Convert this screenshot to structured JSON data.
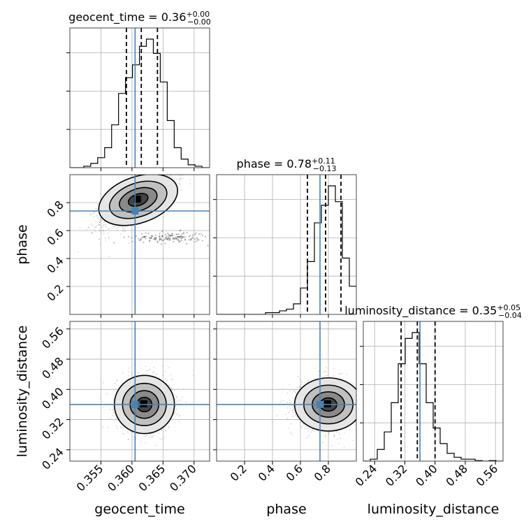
{
  "chart_data": {
    "type": "corner",
    "parameters": [
      {
        "name": "geocent_time",
        "axis_label": "geocent_time",
        "title_value": "0.36",
        "title_plus": "+0.00",
        "title_minus": "−0.00",
        "range": [
          0.35,
          0.3725
        ],
        "ticks": [
          0.355,
          0.36,
          0.365,
          0.37
        ],
        "tick_labels": [
          "0.355",
          "0.360",
          "0.365",
          "0.370"
        ],
        "truth": 0.3605,
        "quantiles": [
          0.3591,
          0.3615,
          0.3641
        ],
        "hist": {
          "edges_start": 0.35,
          "bin_width": 0.00112,
          "counts": [
            0,
            0,
            1,
            3,
            7,
            14,
            30,
            52,
            63,
            72,
            85,
            90,
            80,
            60,
            33,
            14,
            6,
            2,
            1,
            0
          ]
        }
      },
      {
        "name": "phase",
        "axis_label": "phase",
        "title_value": "0.78",
        "title_plus": "+0.11",
        "title_minus": "−0.13",
        "range": [
          0.0,
          1.0
        ],
        "ticks": [
          0.2,
          0.4,
          0.6,
          0.8
        ],
        "tick_labels": [
          "0.2",
          "0.4",
          "0.6",
          "0.8"
        ],
        "truth": 0.74,
        "quantiles": [
          0.65,
          0.78,
          0.89
        ],
        "hist": {
          "edges_start": 0.0,
          "bin_width": 0.05,
          "counts": [
            0,
            0,
            0,
            0,
            0,
            0,
            0,
            1,
            1,
            2,
            3,
            6,
            15,
            30,
            52,
            62,
            73,
            64,
            32,
            16
          ]
        }
      },
      {
        "name": "luminosity_distance",
        "axis_label": "luminosity_distance",
        "title_value": "0.35",
        "title_plus": "+0.05",
        "title_minus": "−0.04",
        "range": [
          0.21,
          0.58
        ],
        "ticks": [
          0.24,
          0.32,
          0.4,
          0.48,
          0.56
        ],
        "tick_labels": [
          "0.24",
          "0.32",
          "0.40",
          "0.48",
          "0.56"
        ],
        "truth": 0.36,
        "quantiles": [
          0.31,
          0.353,
          0.4
        ],
        "hist": {
          "edges_start": 0.21,
          "bin_width": 0.0185,
          "counts": [
            0,
            1,
            6,
            15,
            30,
            50,
            63,
            66,
            50,
            30,
            17,
            9,
            4,
            2,
            1,
            1,
            0.3,
            0,
            0.3,
            0
          ]
        }
      }
    ],
    "pairs": [
      {
        "row": 1,
        "col": 0,
        "center": [
          0.361,
          0.82
        ],
        "spread": [
          0.003,
          0.1
        ],
        "corr": 0.7,
        "extra_blob": {
          "center": [
            0.366,
            0.55
          ],
          "spread": [
            0.003,
            0.02
          ]
        }
      },
      {
        "row": 2,
        "col": 0,
        "center": [
          0.362,
          0.36
        ],
        "spread": [
          0.0022,
          0.035
        ],
        "corr": 0.0
      },
      {
        "row": 2,
        "col": 1,
        "center": [
          0.8,
          0.36
        ],
        "spread": [
          0.11,
          0.032
        ],
        "corr": 0.0
      }
    ],
    "colors": {
      "truth": "#4682b4",
      "hist": "#000000",
      "points": "#888888"
    },
    "grid": true
  }
}
